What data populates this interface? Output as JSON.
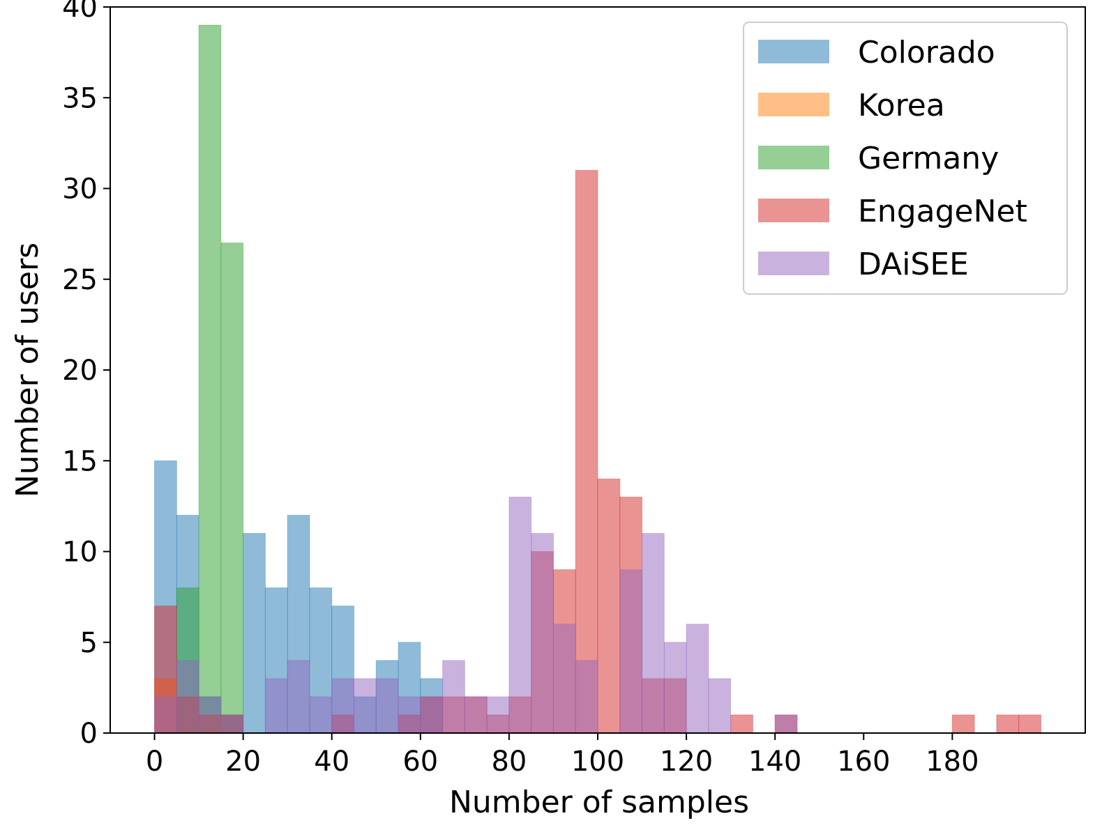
{
  "chart_data": {
    "type": "bar",
    "subtype": "overlapping-histogram",
    "title": "",
    "xlabel": "Number of samples",
    "ylabel": "Number of users",
    "xlim": [
      -10,
      210
    ],
    "ylim": [
      0,
      40
    ],
    "xticks": [
      0,
      20,
      40,
      60,
      80,
      100,
      120,
      140,
      160,
      180
    ],
    "yticks": [
      0,
      5,
      10,
      15,
      20,
      25,
      30,
      35,
      40
    ],
    "bin_width": 5,
    "bin_starts": [
      0,
      5,
      10,
      15,
      20,
      25,
      30,
      35,
      40,
      45,
      50,
      55,
      60,
      65,
      70,
      75,
      80,
      85,
      90,
      95,
      100,
      105,
      110,
      115,
      120,
      125,
      130,
      135,
      140,
      145,
      150,
      155,
      160,
      165,
      170,
      175,
      180,
      185,
      190,
      195
    ],
    "legend_position": "top-right",
    "series": [
      {
        "name": "Colorado",
        "color": "#1f77b4",
        "values": [
          15,
          12,
          2,
          1,
          11,
          8,
          12,
          8,
          7,
          2,
          4,
          5,
          3,
          0,
          0,
          0,
          0,
          0,
          0,
          0,
          0,
          0,
          0,
          0,
          0,
          0,
          0,
          0,
          0,
          0,
          0,
          0,
          0,
          0,
          0,
          0,
          0,
          0,
          0,
          0
        ]
      },
      {
        "name": "Korea",
        "color": "#ff7f0e",
        "values": [
          3,
          2,
          1,
          0,
          0,
          0,
          0,
          0,
          0,
          0,
          0,
          0,
          0,
          0,
          0,
          0,
          0,
          0,
          0,
          0,
          0,
          0,
          0,
          0,
          0,
          0,
          0,
          0,
          0,
          0,
          0,
          0,
          0,
          0,
          0,
          0,
          0,
          0,
          0,
          0
        ]
      },
      {
        "name": "Germany",
        "color": "#2ca02c",
        "values": [
          0,
          8,
          39,
          27,
          0,
          0,
          0,
          0,
          0,
          0,
          0,
          0,
          0,
          0,
          0,
          0,
          0,
          0,
          0,
          0,
          0,
          0,
          0,
          0,
          0,
          0,
          0,
          0,
          0,
          0,
          0,
          0,
          0,
          0,
          0,
          0,
          0,
          0,
          0,
          0
        ]
      },
      {
        "name": "EngageNet",
        "color": "#d62728",
        "values": [
          7,
          2,
          1,
          1,
          0,
          0,
          0,
          0,
          1,
          0,
          0,
          1,
          2,
          2,
          2,
          1,
          2,
          10,
          9,
          31,
          14,
          13,
          3,
          3,
          0,
          0,
          1,
          0,
          1,
          0,
          0,
          0,
          0,
          0,
          0,
          0,
          1,
          0,
          1,
          1
        ]
      },
      {
        "name": "DAiSEE",
        "color": "#9467bd",
        "values": [
          2,
          4,
          2,
          1,
          0,
          3,
          4,
          2,
          3,
          3,
          3,
          2,
          2,
          4,
          2,
          2,
          13,
          11,
          6,
          4,
          0,
          9,
          11,
          5,
          6,
          3,
          0,
          0,
          1,
          0,
          0,
          0,
          0,
          0,
          0,
          0,
          0,
          0,
          0,
          0
        ]
      }
    ]
  }
}
